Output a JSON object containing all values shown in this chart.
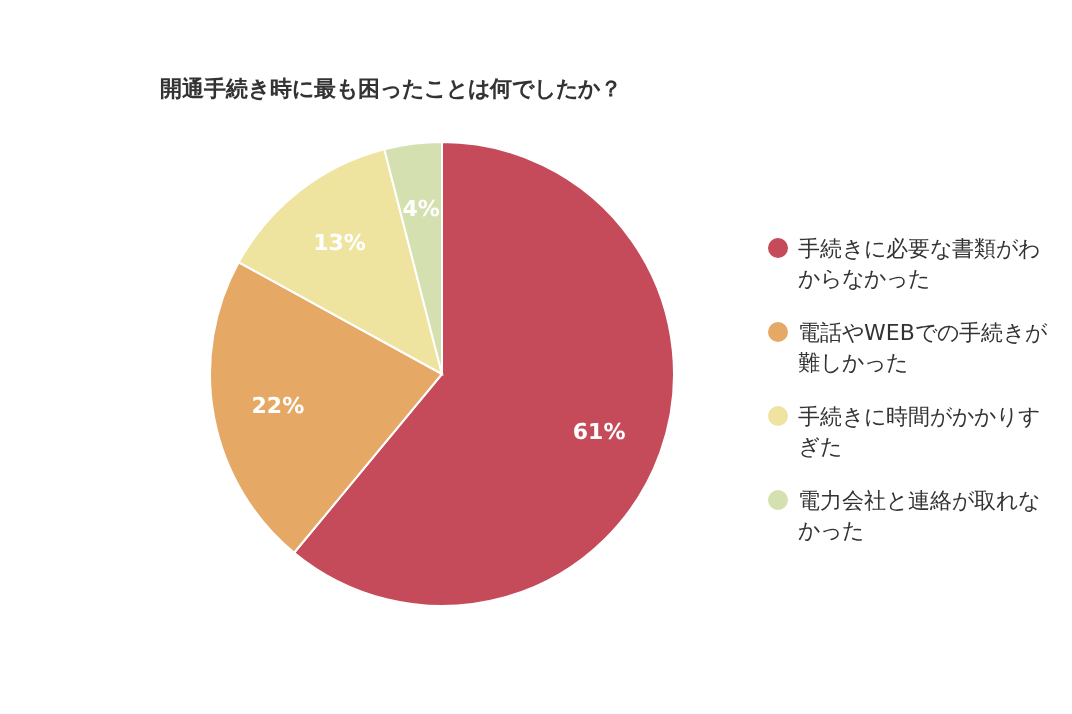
{
  "chart_data": {
    "type": "pie",
    "title": "開通手続き時に最も困ったことは何でしたか？",
    "categories": [
      "手続きに必要な書類がわからなかった",
      "電話やWEBでの手続きが難しかった",
      "手続きに時間がかかりすぎた",
      "電力会社と連絡が取れなかった"
    ],
    "values": [
      61,
      22,
      13,
      4
    ],
    "colors": [
      "#c64b5a",
      "#e6a965",
      "#efe3a0",
      "#d5e0b0"
    ],
    "value_labels": [
      "61%",
      "22%",
      "13%",
      "4%"
    ],
    "legend": "right"
  }
}
